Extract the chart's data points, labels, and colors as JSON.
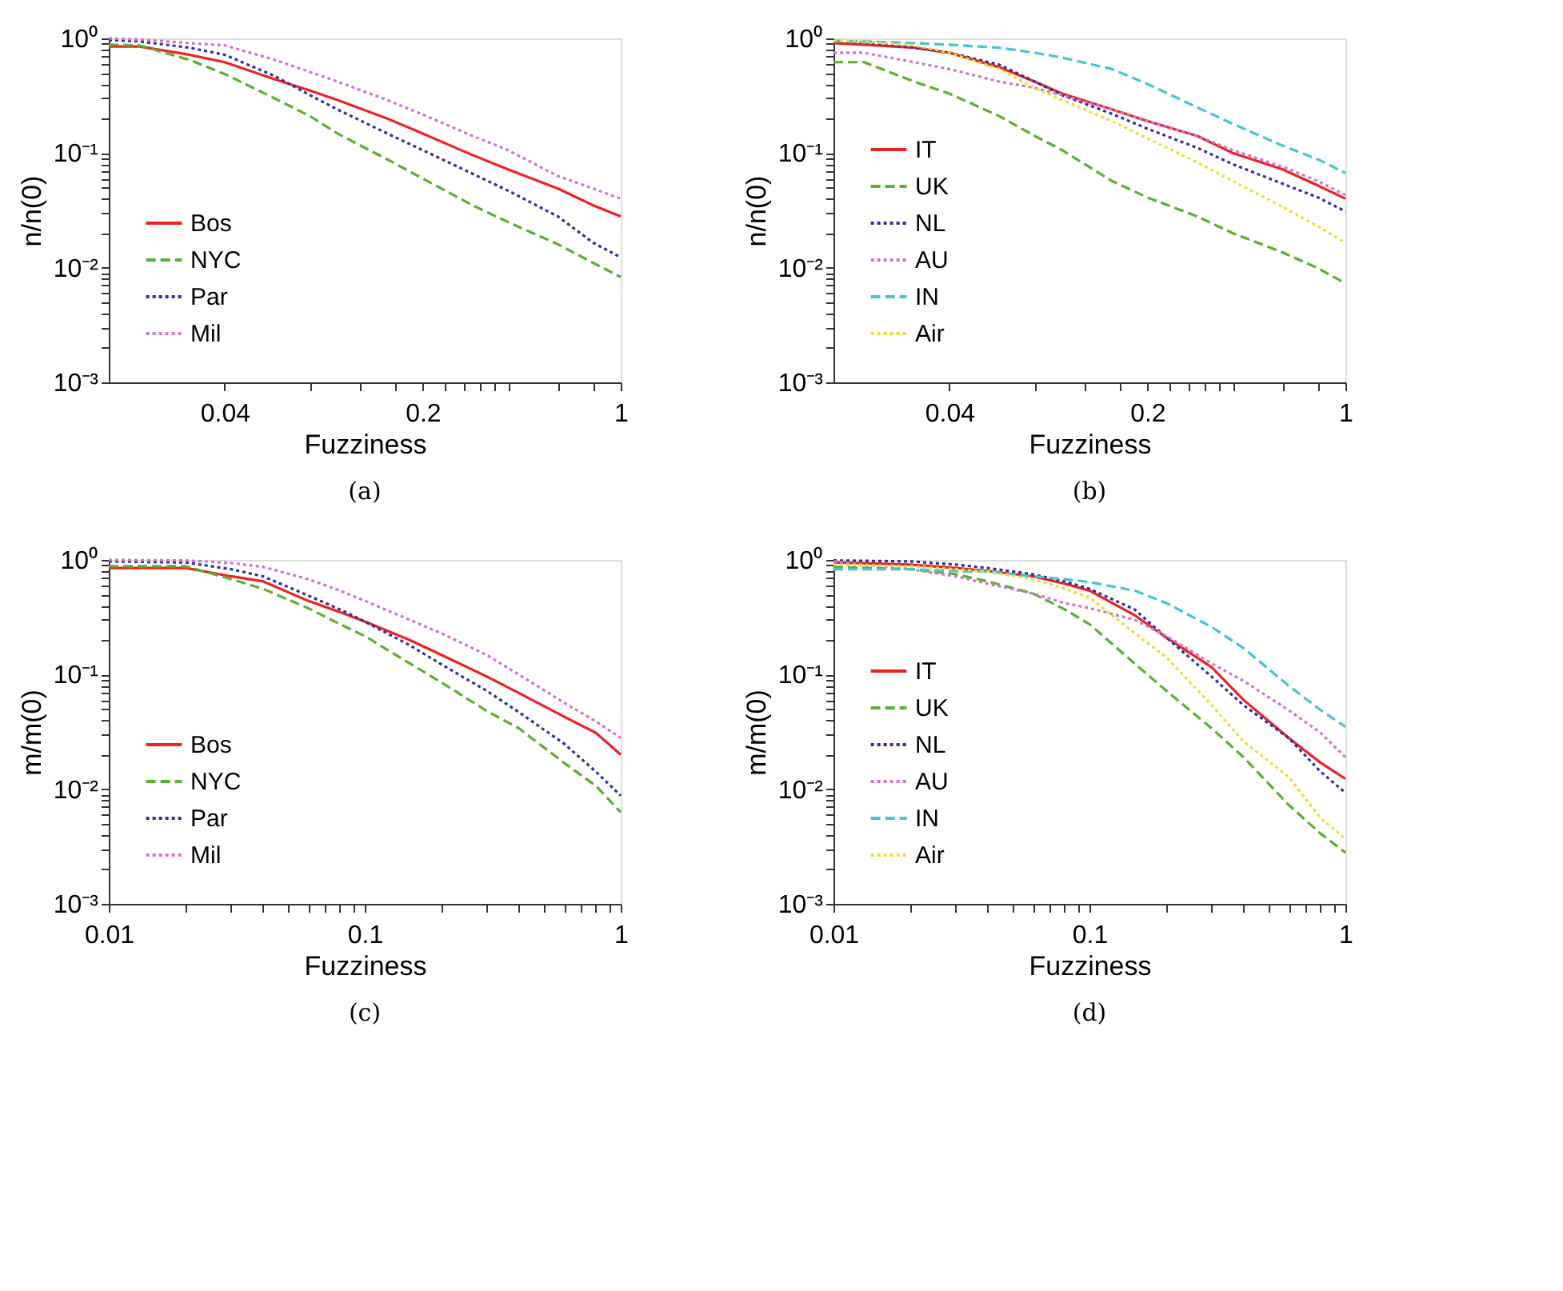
{
  "chart_data": [
    {
      "type": "line",
      "xlabel": "Fuzziness",
      "ylabel": "n/n(0)",
      "annotations": [
        "(a)"
      ],
      "log": "xy",
      "legend": "bottom left",
      "xlim": [
        0.0156,
        1
      ],
      "ylim": [
        0.001,
        1
      ],
      "xticks": [
        0.04,
        {
          "value": 0.08,
          "label": null
        },
        {
          "value": 0.12,
          "label": null
        },
        {
          "value": 0.16,
          "label": null
        },
        0.2,
        {
          "value": 0.24,
          "label": null
        },
        {
          "value": 0.28,
          "label": null
        },
        {
          "value": 0.32,
          "label": null
        },
        {
          "value": 0.36,
          "label": null
        },
        {
          "value": 0.4,
          "label": null
        },
        {
          "value": 0.6,
          "label": null
        },
        {
          "value": 0.8,
          "label": null
        },
        1
      ],
      "yticks": [
        {
          "value": 0.001,
          "label": "10⁻³"
        },
        {
          "value": 0.002,
          "label": null
        },
        {
          "value": 0.003,
          "label": null
        },
        {
          "value": 0.004,
          "label": null
        },
        {
          "value": 0.005,
          "label": null
        },
        {
          "value": 0.006,
          "label": null
        },
        {
          "value": 0.007,
          "label": null
        },
        {
          "value": 0.008,
          "label": null
        },
        {
          "value": 0.009,
          "label": null
        },
        {
          "value": 0.01,
          "label": "10⁻²"
        },
        {
          "value": 0.02,
          "label": null
        },
        {
          "value": 0.03,
          "label": null
        },
        {
          "value": 0.04,
          "label": null
        },
        {
          "value": 0.05,
          "label": null
        },
        {
          "value": 0.06,
          "label": null
        },
        {
          "value": 0.07,
          "label": null
        },
        {
          "value": 0.08,
          "label": null
        },
        {
          "value": 0.09,
          "label": null
        },
        {
          "value": 0.1,
          "label": "10⁻¹"
        },
        {
          "value": 0.2,
          "label": null
        },
        {
          "value": 0.3,
          "label": null
        },
        {
          "value": 0.4,
          "label": null
        },
        {
          "value": 0.5,
          "label": null
        },
        {
          "value": 0.6,
          "label": null
        },
        {
          "value": 0.7,
          "label": null
        },
        {
          "value": 0.8,
          "label": null
        },
        {
          "value": 0.9,
          "label": null
        },
        {
          "value": 1,
          "label": "10⁰"
        }
      ],
      "x": [
        0.0156,
        0.02,
        0.03,
        0.04,
        0.06,
        0.08,
        0.1,
        0.15,
        0.2,
        0.3,
        0.4,
        0.6,
        0.8,
        1
      ],
      "series": [
        {
          "name": "Bos",
          "color": "#ee2222",
          "line_style": "solid",
          "values": [
            0.85,
            0.85,
            0.72,
            0.62,
            0.44,
            0.35,
            0.29,
            0.2,
            0.148,
            0.096,
            0.072,
            0.049,
            0.035,
            0.028
          ]
        },
        {
          "name": "NYC",
          "color": "#5ab030",
          "line_style": "dashed",
          "values": [
            0.88,
            0.87,
            0.65,
            0.49,
            0.3,
            0.21,
            0.148,
            0.088,
            0.06,
            0.035,
            0.025,
            0.016,
            0.011,
            0.0083
          ]
        },
        {
          "name": "Par",
          "color": "#3030a0",
          "line_style": "dotted",
          "values": [
            0.97,
            0.94,
            0.83,
            0.72,
            0.47,
            0.32,
            0.24,
            0.148,
            0.106,
            0.066,
            0.047,
            0.028,
            0.0165,
            0.0123
          ]
        },
        {
          "name": "Mil",
          "color": "#cc77cc",
          "line_style": "dotted",
          "values": [
            1.0,
            0.98,
            0.91,
            0.87,
            0.65,
            0.51,
            0.42,
            0.29,
            0.217,
            0.141,
            0.106,
            0.063,
            0.049,
            0.04
          ]
        }
      ]
    },
    {
      "type": "line",
      "xlabel": "Fuzziness",
      "ylabel": "n/n(0)",
      "annotations": [
        "(b)"
      ],
      "log": "xy",
      "legend": "bottom left",
      "xlim": [
        0.0156,
        1
      ],
      "ylim": [
        0.001,
        1
      ],
      "xticks": [
        0.04,
        {
          "value": 0.08,
          "label": null
        },
        {
          "value": 0.12,
          "label": null
        },
        {
          "value": 0.16,
          "label": null
        },
        0.2,
        {
          "value": 0.24,
          "label": null
        },
        {
          "value": 0.28,
          "label": null
        },
        {
          "value": 0.32,
          "label": null
        },
        {
          "value": 0.36,
          "label": null
        },
        {
          "value": 0.4,
          "label": null
        },
        {
          "value": 0.6,
          "label": null
        },
        {
          "value": 0.8,
          "label": null
        },
        1
      ],
      "yticks": [
        {
          "value": 0.001,
          "label": "10⁻³"
        },
        {
          "value": 0.002,
          "label": null
        },
        {
          "value": 0.003,
          "label": null
        },
        {
          "value": 0.004,
          "label": null
        },
        {
          "value": 0.005,
          "label": null
        },
        {
          "value": 0.006,
          "label": null
        },
        {
          "value": 0.007,
          "label": null
        },
        {
          "value": 0.008,
          "label": null
        },
        {
          "value": 0.009,
          "label": null
        },
        {
          "value": 0.01,
          "label": "10⁻²"
        },
        {
          "value": 0.02,
          "label": null
        },
        {
          "value": 0.03,
          "label": null
        },
        {
          "value": 0.04,
          "label": null
        },
        {
          "value": 0.05,
          "label": null
        },
        {
          "value": 0.06,
          "label": null
        },
        {
          "value": 0.07,
          "label": null
        },
        {
          "value": 0.08,
          "label": null
        },
        {
          "value": 0.09,
          "label": null
        },
        {
          "value": 0.1,
          "label": "10⁻¹"
        },
        {
          "value": 0.2,
          "label": null
        },
        {
          "value": 0.3,
          "label": null
        },
        {
          "value": 0.4,
          "label": null
        },
        {
          "value": 0.5,
          "label": null
        },
        {
          "value": 0.6,
          "label": null
        },
        {
          "value": 0.7,
          "label": null
        },
        {
          "value": 0.8,
          "label": null
        },
        {
          "value": 0.9,
          "label": null
        },
        {
          "value": 1,
          "label": "10⁰"
        }
      ],
      "x": [
        0.0156,
        0.02,
        0.03,
        0.04,
        0.06,
        0.08,
        0.1,
        0.15,
        0.2,
        0.3,
        0.4,
        0.6,
        0.8,
        1
      ],
      "series": [
        {
          "name": "IT",
          "color": "#ee2222",
          "line_style": "solid",
          "values": [
            0.91,
            0.88,
            0.83,
            0.75,
            0.56,
            0.42,
            0.33,
            0.24,
            0.19,
            0.141,
            0.1,
            0.072,
            0.052,
            0.04
          ]
        },
        {
          "name": "UK",
          "color": "#5ab030",
          "line_style": "dashed",
          "values": [
            0.62,
            0.62,
            0.42,
            0.33,
            0.21,
            0.141,
            0.106,
            0.057,
            0.041,
            0.028,
            0.02,
            0.0136,
            0.0099,
            0.0073
          ]
        },
        {
          "name": "NL",
          "color": "#3030a0",
          "line_style": "dotted",
          "values": [
            0.94,
            0.93,
            0.83,
            0.75,
            0.59,
            0.42,
            0.32,
            0.22,
            0.163,
            0.111,
            0.08,
            0.054,
            0.041,
            0.031
          ]
        },
        {
          "name": "AU",
          "color": "#cc77cc",
          "line_style": "dotted",
          "values": [
            0.75,
            0.75,
            0.62,
            0.54,
            0.42,
            0.37,
            0.32,
            0.24,
            0.19,
            0.141,
            0.106,
            0.076,
            0.057,
            0.043
          ]
        },
        {
          "name": "IN",
          "color": "#44c4d4",
          "line_style": "dashed",
          "values": [
            0.95,
            0.94,
            0.91,
            0.88,
            0.83,
            0.75,
            0.68,
            0.54,
            0.4,
            0.25,
            0.18,
            0.116,
            0.088,
            0.067
          ]
        },
        {
          "name": "Air",
          "color": "#e8e030",
          "line_style": "dotted",
          "values": [
            0.95,
            0.94,
            0.87,
            0.75,
            0.54,
            0.37,
            0.29,
            0.19,
            0.134,
            0.083,
            0.057,
            0.034,
            0.023,
            0.0165
          ]
        }
      ]
    },
    {
      "type": "line",
      "xlabel": "Fuzziness",
      "ylabel": "m/m(0)",
      "annotations": [
        "(c)"
      ],
      "log": "xy",
      "legend": "bottom left",
      "xlim": [
        0.01,
        1
      ],
      "ylim": [
        0.001,
        1
      ],
      "xticks": [
        0.01,
        {
          "value": 0.02,
          "label": null
        },
        {
          "value": 0.03,
          "label": null
        },
        {
          "value": 0.04,
          "label": null
        },
        {
          "value": 0.05,
          "label": null
        },
        {
          "value": 0.06,
          "label": null
        },
        {
          "value": 0.07,
          "label": null
        },
        {
          "value": 0.08,
          "label": null
        },
        {
          "value": 0.09,
          "label": null
        },
        0.1,
        {
          "value": 0.2,
          "label": null
        },
        {
          "value": 0.3,
          "label": null
        },
        {
          "value": 0.4,
          "label": null
        },
        {
          "value": 0.5,
          "label": null
        },
        {
          "value": 0.6,
          "label": null
        },
        {
          "value": 0.7,
          "label": null
        },
        {
          "value": 0.8,
          "label": null
        },
        {
          "value": 0.9,
          "label": null
        },
        1
      ],
      "yticks": [
        {
          "value": 0.001,
          "label": "10⁻³"
        },
        {
          "value": 0.002,
          "label": null
        },
        {
          "value": 0.003,
          "label": null
        },
        {
          "value": 0.004,
          "label": null
        },
        {
          "value": 0.005,
          "label": null
        },
        {
          "value": 0.006,
          "label": null
        },
        {
          "value": 0.007,
          "label": null
        },
        {
          "value": 0.008,
          "label": null
        },
        {
          "value": 0.009,
          "label": null
        },
        {
          "value": 0.01,
          "label": "10⁻²"
        },
        {
          "value": 0.02,
          "label": null
        },
        {
          "value": 0.03,
          "label": null
        },
        {
          "value": 0.04,
          "label": null
        },
        {
          "value": 0.05,
          "label": null
        },
        {
          "value": 0.06,
          "label": null
        },
        {
          "value": 0.07,
          "label": null
        },
        {
          "value": 0.08,
          "label": null
        },
        {
          "value": 0.09,
          "label": null
        },
        {
          "value": 0.1,
          "label": "10⁻¹"
        },
        {
          "value": 0.2,
          "label": null
        },
        {
          "value": 0.3,
          "label": null
        },
        {
          "value": 0.4,
          "label": null
        },
        {
          "value": 0.5,
          "label": null
        },
        {
          "value": 0.6,
          "label": null
        },
        {
          "value": 0.7,
          "label": null
        },
        {
          "value": 0.8,
          "label": null
        },
        {
          "value": 0.9,
          "label": null
        },
        {
          "value": 1,
          "label": "10⁰"
        }
      ],
      "x": [
        0.01,
        0.02,
        0.03,
        0.04,
        0.06,
        0.08,
        0.1,
        0.15,
        0.2,
        0.3,
        0.4,
        0.6,
        0.8,
        1
      ],
      "series": [
        {
          "name": "Bos",
          "color": "#ee2222",
          "line_style": "solid",
          "values": [
            0.85,
            0.85,
            0.72,
            0.65,
            0.44,
            0.35,
            0.29,
            0.2,
            0.148,
            0.096,
            0.069,
            0.043,
            0.031,
            0.02
          ]
        },
        {
          "name": "NYC",
          "color": "#5ab030",
          "line_style": "dashed",
          "values": [
            0.88,
            0.88,
            0.68,
            0.56,
            0.38,
            0.275,
            0.217,
            0.125,
            0.085,
            0.048,
            0.034,
            0.017,
            0.0107,
            0.0063
          ]
        },
        {
          "name": "Par",
          "color": "#3030a0",
          "line_style": "dotted",
          "values": [
            0.97,
            0.95,
            0.83,
            0.72,
            0.49,
            0.37,
            0.29,
            0.18,
            0.122,
            0.072,
            0.047,
            0.025,
            0.0142,
            0.0088
          ]
        },
        {
          "name": "Mil",
          "color": "#cc77cc",
          "line_style": "dotted",
          "values": [
            1.0,
            0.99,
            0.94,
            0.87,
            0.68,
            0.54,
            0.44,
            0.3,
            0.228,
            0.148,
            0.1,
            0.057,
            0.039,
            0.028
          ]
        }
      ]
    },
    {
      "type": "line",
      "xlabel": "Fuzziness",
      "ylabel": "m/m(0)",
      "annotations": [
        "(d)"
      ],
      "log": "xy",
      "legend": "bottom left",
      "xlim": [
        0.01,
        1
      ],
      "ylim": [
        0.001,
        1
      ],
      "xticks": [
        0.01,
        {
          "value": 0.02,
          "label": null
        },
        {
          "value": 0.03,
          "label": null
        },
        {
          "value": 0.04,
          "label": null
        },
        {
          "value": 0.05,
          "label": null
        },
        {
          "value": 0.06,
          "label": null
        },
        {
          "value": 0.07,
          "label": null
        },
        {
          "value": 0.08,
          "label": null
        },
        {
          "value": 0.09,
          "label": null
        },
        0.1,
        {
          "value": 0.2,
          "label": null
        },
        {
          "value": 0.3,
          "label": null
        },
        {
          "value": 0.4,
          "label": null
        },
        {
          "value": 0.5,
          "label": null
        },
        {
          "value": 0.6,
          "label": null
        },
        {
          "value": 0.7,
          "label": null
        },
        {
          "value": 0.8,
          "label": null
        },
        {
          "value": 0.9,
          "label": null
        },
        1
      ],
      "yticks": [
        {
          "value": 0.001,
          "label": "10⁻³"
        },
        {
          "value": 0.002,
          "label": null
        },
        {
          "value": 0.003,
          "label": null
        },
        {
          "value": 0.004,
          "label": null
        },
        {
          "value": 0.005,
          "label": null
        },
        {
          "value": 0.006,
          "label": null
        },
        {
          "value": 0.007,
          "label": null
        },
        {
          "value": 0.008,
          "label": null
        },
        {
          "value": 0.009,
          "label": null
        },
        {
          "value": 0.01,
          "label": "10⁻²"
        },
        {
          "value": 0.02,
          "label": null
        },
        {
          "value": 0.03,
          "label": null
        },
        {
          "value": 0.04,
          "label": null
        },
        {
          "value": 0.05,
          "label": null
        },
        {
          "value": 0.06,
          "label": null
        },
        {
          "value": 0.07,
          "label": null
        },
        {
          "value": 0.08,
          "label": null
        },
        {
          "value": 0.09,
          "label": null
        },
        {
          "value": 0.1,
          "label": "10⁻¹"
        },
        {
          "value": 0.2,
          "label": null
        },
        {
          "value": 0.3,
          "label": null
        },
        {
          "value": 0.4,
          "label": null
        },
        {
          "value": 0.5,
          "label": null
        },
        {
          "value": 0.6,
          "label": null
        },
        {
          "value": 0.7,
          "label": null
        },
        {
          "value": 0.8,
          "label": null
        },
        {
          "value": 0.9,
          "label": null
        },
        {
          "value": 1,
          "label": "10⁰"
        }
      ],
      "x": [
        0.01,
        0.02,
        0.03,
        0.04,
        0.06,
        0.08,
        0.1,
        0.15,
        0.2,
        0.3,
        0.4,
        0.6,
        0.8,
        1
      ],
      "series": [
        {
          "name": "IT",
          "color": "#ee2222",
          "line_style": "solid",
          "values": [
            0.95,
            0.91,
            0.85,
            0.8,
            0.72,
            0.62,
            0.54,
            0.33,
            0.21,
            0.116,
            0.06,
            0.028,
            0.017,
            0.0123
          ]
        },
        {
          "name": "UK",
          "color": "#5ab030",
          "line_style": "dashed",
          "values": [
            0.87,
            0.83,
            0.75,
            0.65,
            0.51,
            0.37,
            0.275,
            0.125,
            0.072,
            0.034,
            0.019,
            0.0073,
            0.0041,
            0.0028
          ]
        },
        {
          "name": "NL",
          "color": "#3030a0",
          "line_style": "dotted",
          "values": [
            0.99,
            0.97,
            0.91,
            0.85,
            0.75,
            0.65,
            0.56,
            0.37,
            0.21,
            0.096,
            0.054,
            0.028,
            0.0142,
            0.0093
          ]
        },
        {
          "name": "AU",
          "color": "#cc77cc",
          "line_style": "dotted",
          "values": [
            0.97,
            0.83,
            0.72,
            0.62,
            0.51,
            0.42,
            0.38,
            0.3,
            0.217,
            0.125,
            0.088,
            0.049,
            0.031,
            0.019
          ]
        },
        {
          "name": "IN",
          "color": "#44c4d4",
          "line_style": "dashed",
          "values": [
            0.83,
            0.83,
            0.8,
            0.79,
            0.72,
            0.68,
            0.64,
            0.54,
            0.42,
            0.26,
            0.17,
            0.08,
            0.049,
            0.035
          ]
        },
        {
          "name": "Air",
          "color": "#e8e030",
          "line_style": "dotted",
          "values": [
            0.91,
            0.88,
            0.83,
            0.79,
            0.68,
            0.56,
            0.47,
            0.23,
            0.141,
            0.054,
            0.026,
            0.0128,
            0.0056,
            0.0037
          ]
        }
      ]
    }
  ]
}
